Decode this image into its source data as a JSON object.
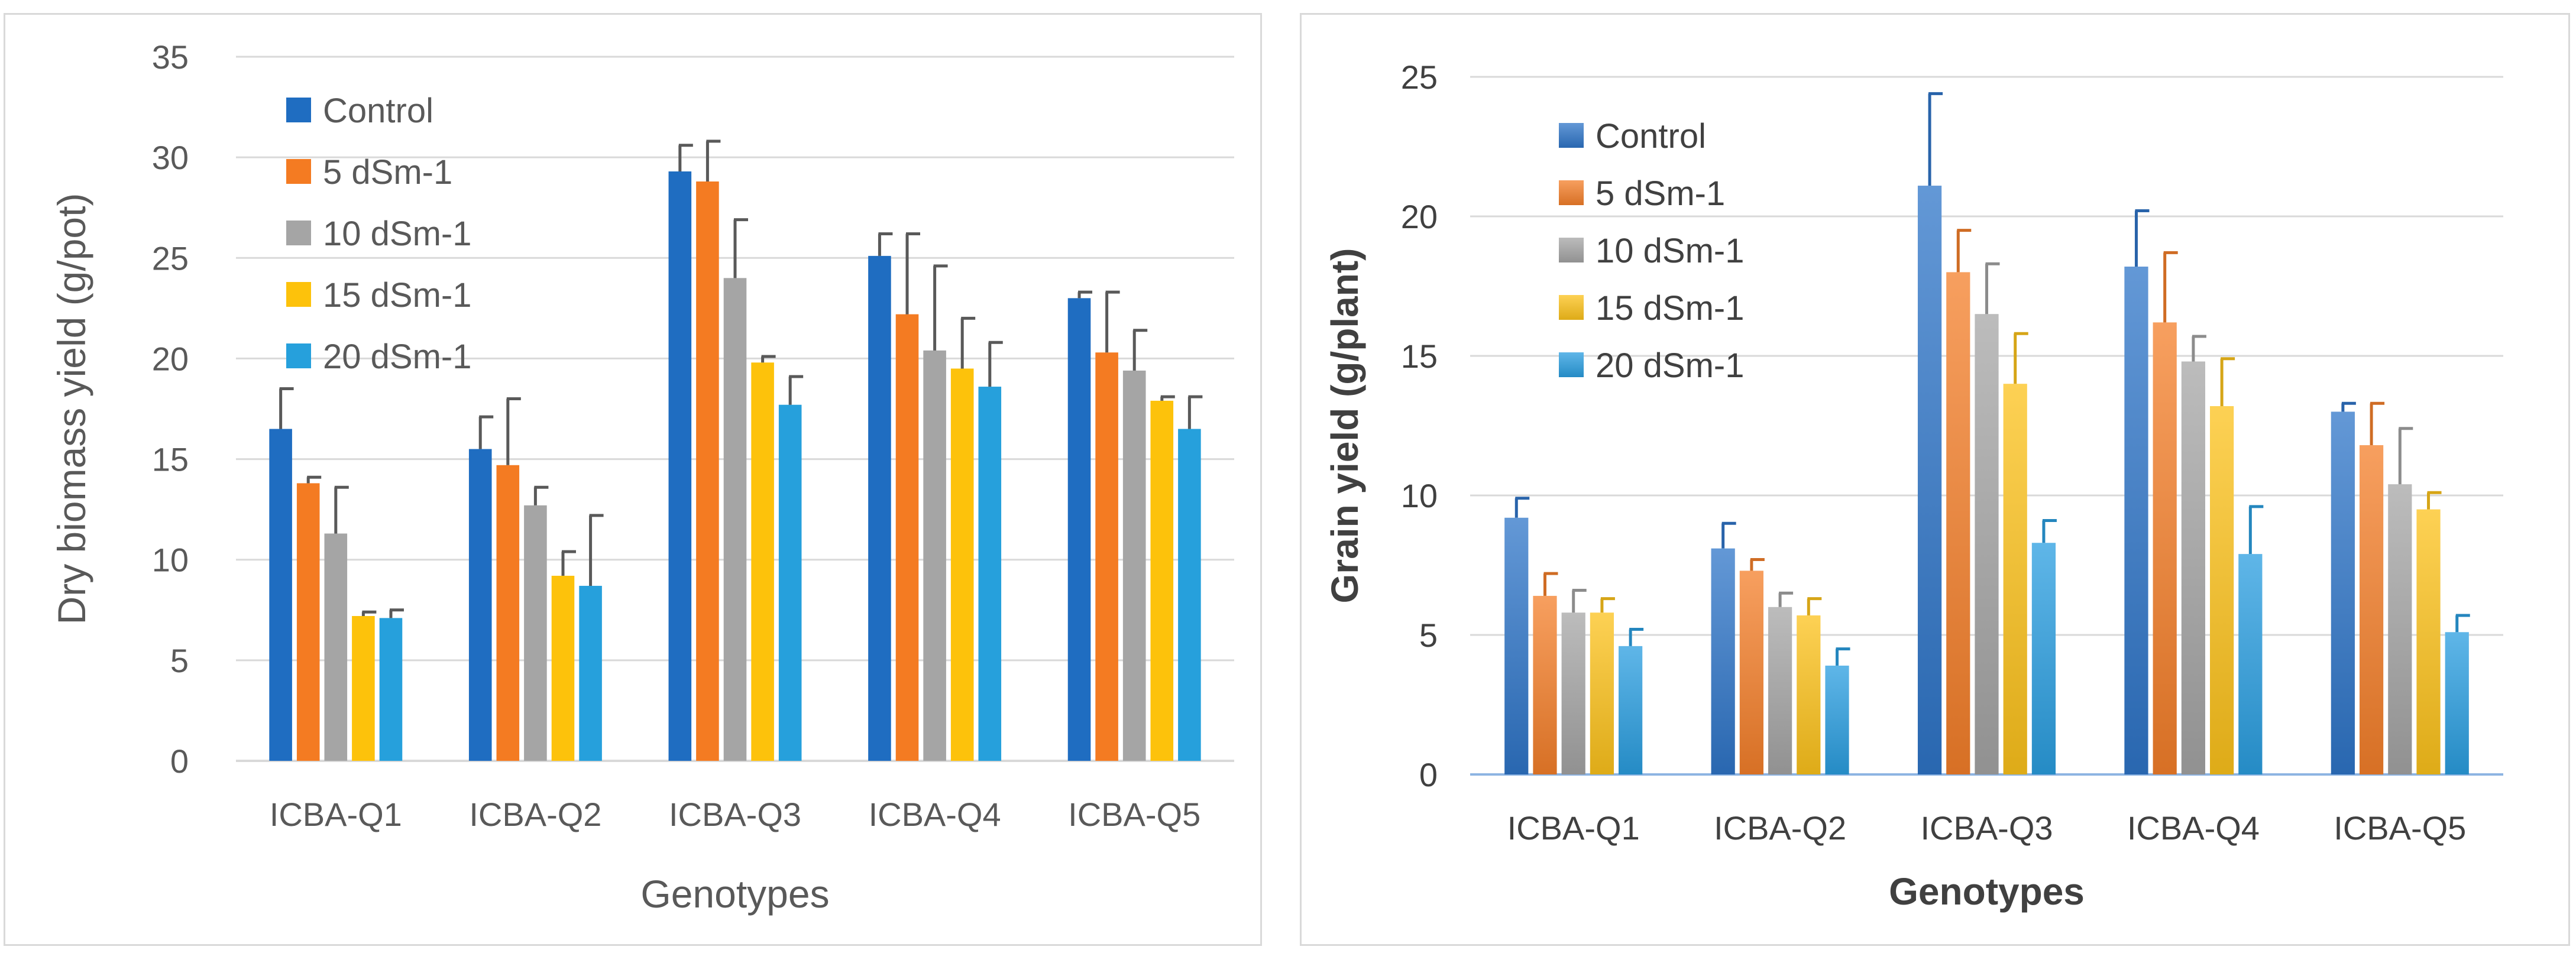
{
  "chart_data": [
    {
      "type": "bar",
      "title": "",
      "xlabel": "Genotypes",
      "ylabel": "Dry biomass yield (g/pot)",
      "ylim": [
        0,
        35
      ],
      "yticks": [
        "0",
        "5",
        "10",
        "15",
        "20",
        "25",
        "30",
        "35"
      ],
      "categories": [
        "ICBA-Q1",
        "ICBA-Q2",
        "ICBA-Q3",
        "ICBA-Q4",
        "ICBA-Q5"
      ],
      "legend_position": "top-left",
      "grid": true,
      "series": [
        {
          "name": "Control",
          "color": "#1f6dc1",
          "values": [
            16.5,
            15.5,
            29.3,
            25.1,
            23.0
          ],
          "errors": [
            2.0,
            1.6,
            1.3,
            1.1,
            0.3
          ]
        },
        {
          "name": "5 dSm-1",
          "color": "#f47b22",
          "values": [
            13.8,
            14.7,
            28.8,
            22.2,
            20.3
          ],
          "errors": [
            0.3,
            3.3,
            2.0,
            4.0,
            3.0
          ]
        },
        {
          "name": "10 dSm-1",
          "color": "#a5a5a5",
          "values": [
            11.3,
            12.7,
            24.0,
            20.4,
            19.4
          ],
          "errors": [
            2.3,
            0.9,
            2.9,
            4.2,
            2.0
          ]
        },
        {
          "name": "15 dSm-1",
          "color": "#fdc20b",
          "values": [
            7.2,
            9.2,
            19.8,
            19.5,
            17.9
          ],
          "errors": [
            0.2,
            1.2,
            0.3,
            2.5,
            0.2
          ]
        },
        {
          "name": "20 dSm-1",
          "color": "#26a0dc",
          "values": [
            7.1,
            8.7,
            17.7,
            18.6,
            16.5
          ],
          "errors": [
            0.4,
            3.5,
            1.4,
            2.2,
            1.6
          ]
        }
      ]
    },
    {
      "type": "bar",
      "title": "",
      "xlabel": "Genotypes",
      "ylabel": "Grain yield (g/plant)",
      "ylim": [
        0,
        25
      ],
      "yticks": [
        "0",
        "5",
        "10",
        "15",
        "20",
        "25"
      ],
      "categories": [
        "ICBA-Q1",
        "ICBA-Q2",
        "ICBA-Q3",
        "ICBA-Q4",
        "ICBA-Q5"
      ],
      "legend_position": "top-left",
      "grid": true,
      "series": [
        {
          "name": "Control",
          "color": "#2f75c8",
          "values": [
            9.2,
            8.1,
            21.1,
            18.2,
            13.0
          ],
          "errors": [
            0.7,
            0.9,
            3.3,
            2.0,
            0.3
          ]
        },
        {
          "name": "5 dSm-1",
          "color": "#f47f2a",
          "values": [
            6.4,
            7.3,
            18.0,
            16.2,
            11.8
          ],
          "errors": [
            0.8,
            0.4,
            1.5,
            2.5,
            1.5
          ]
        },
        {
          "name": "10 dSm-1",
          "color": "#a5a5a5",
          "values": [
            5.8,
            6.0,
            16.5,
            14.8,
            10.4
          ],
          "errors": [
            0.8,
            0.5,
            1.8,
            0.9,
            2.0
          ]
        },
        {
          "name": "15 dSm-1",
          "color": "#fcc21b",
          "values": [
            5.8,
            5.7,
            14.0,
            13.2,
            9.5
          ],
          "errors": [
            0.5,
            0.6,
            1.8,
            1.7,
            0.6
          ]
        },
        {
          "name": "20 dSm-1",
          "color": "#2a9ee0",
          "values": [
            4.6,
            3.9,
            8.3,
            7.9,
            5.1
          ],
          "errors": [
            0.6,
            0.6,
            0.8,
            1.7,
            0.6
          ]
        }
      ]
    }
  ]
}
